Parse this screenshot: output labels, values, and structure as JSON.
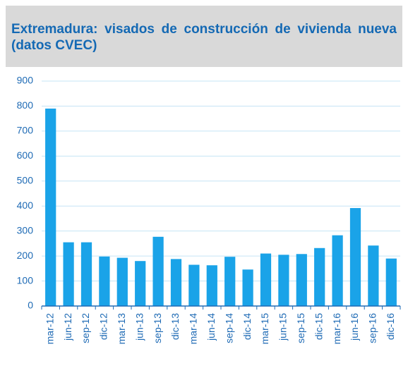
{
  "chart_data": {
    "type": "bar",
    "title": "Extremadura: visados de construcción de vivienda nueva (datos CVEC)",
    "categories": [
      "mar-12",
      "jun-12",
      "sep-12",
      "dic-12",
      "mar-13",
      "jun-13",
      "sep-13",
      "dic-13",
      "mar-14",
      "jun-14",
      "sep-14",
      "dic-14",
      "mar-15",
      "jun-15",
      "sep-15",
      "dic-15",
      "mar-16",
      "jun-16",
      "sep-16",
      "dic-16"
    ],
    "values": [
      790,
      255,
      255,
      198,
      193,
      180,
      277,
      188,
      165,
      163,
      197,
      146,
      210,
      205,
      208,
      232,
      283,
      392,
      242,
      190
    ],
    "color": "#1aa3e8",
    "ylim": [
      0,
      900
    ],
    "yticks": [
      0,
      100,
      200,
      300,
      400,
      500,
      600,
      700,
      800,
      900
    ],
    "grid": true
  }
}
